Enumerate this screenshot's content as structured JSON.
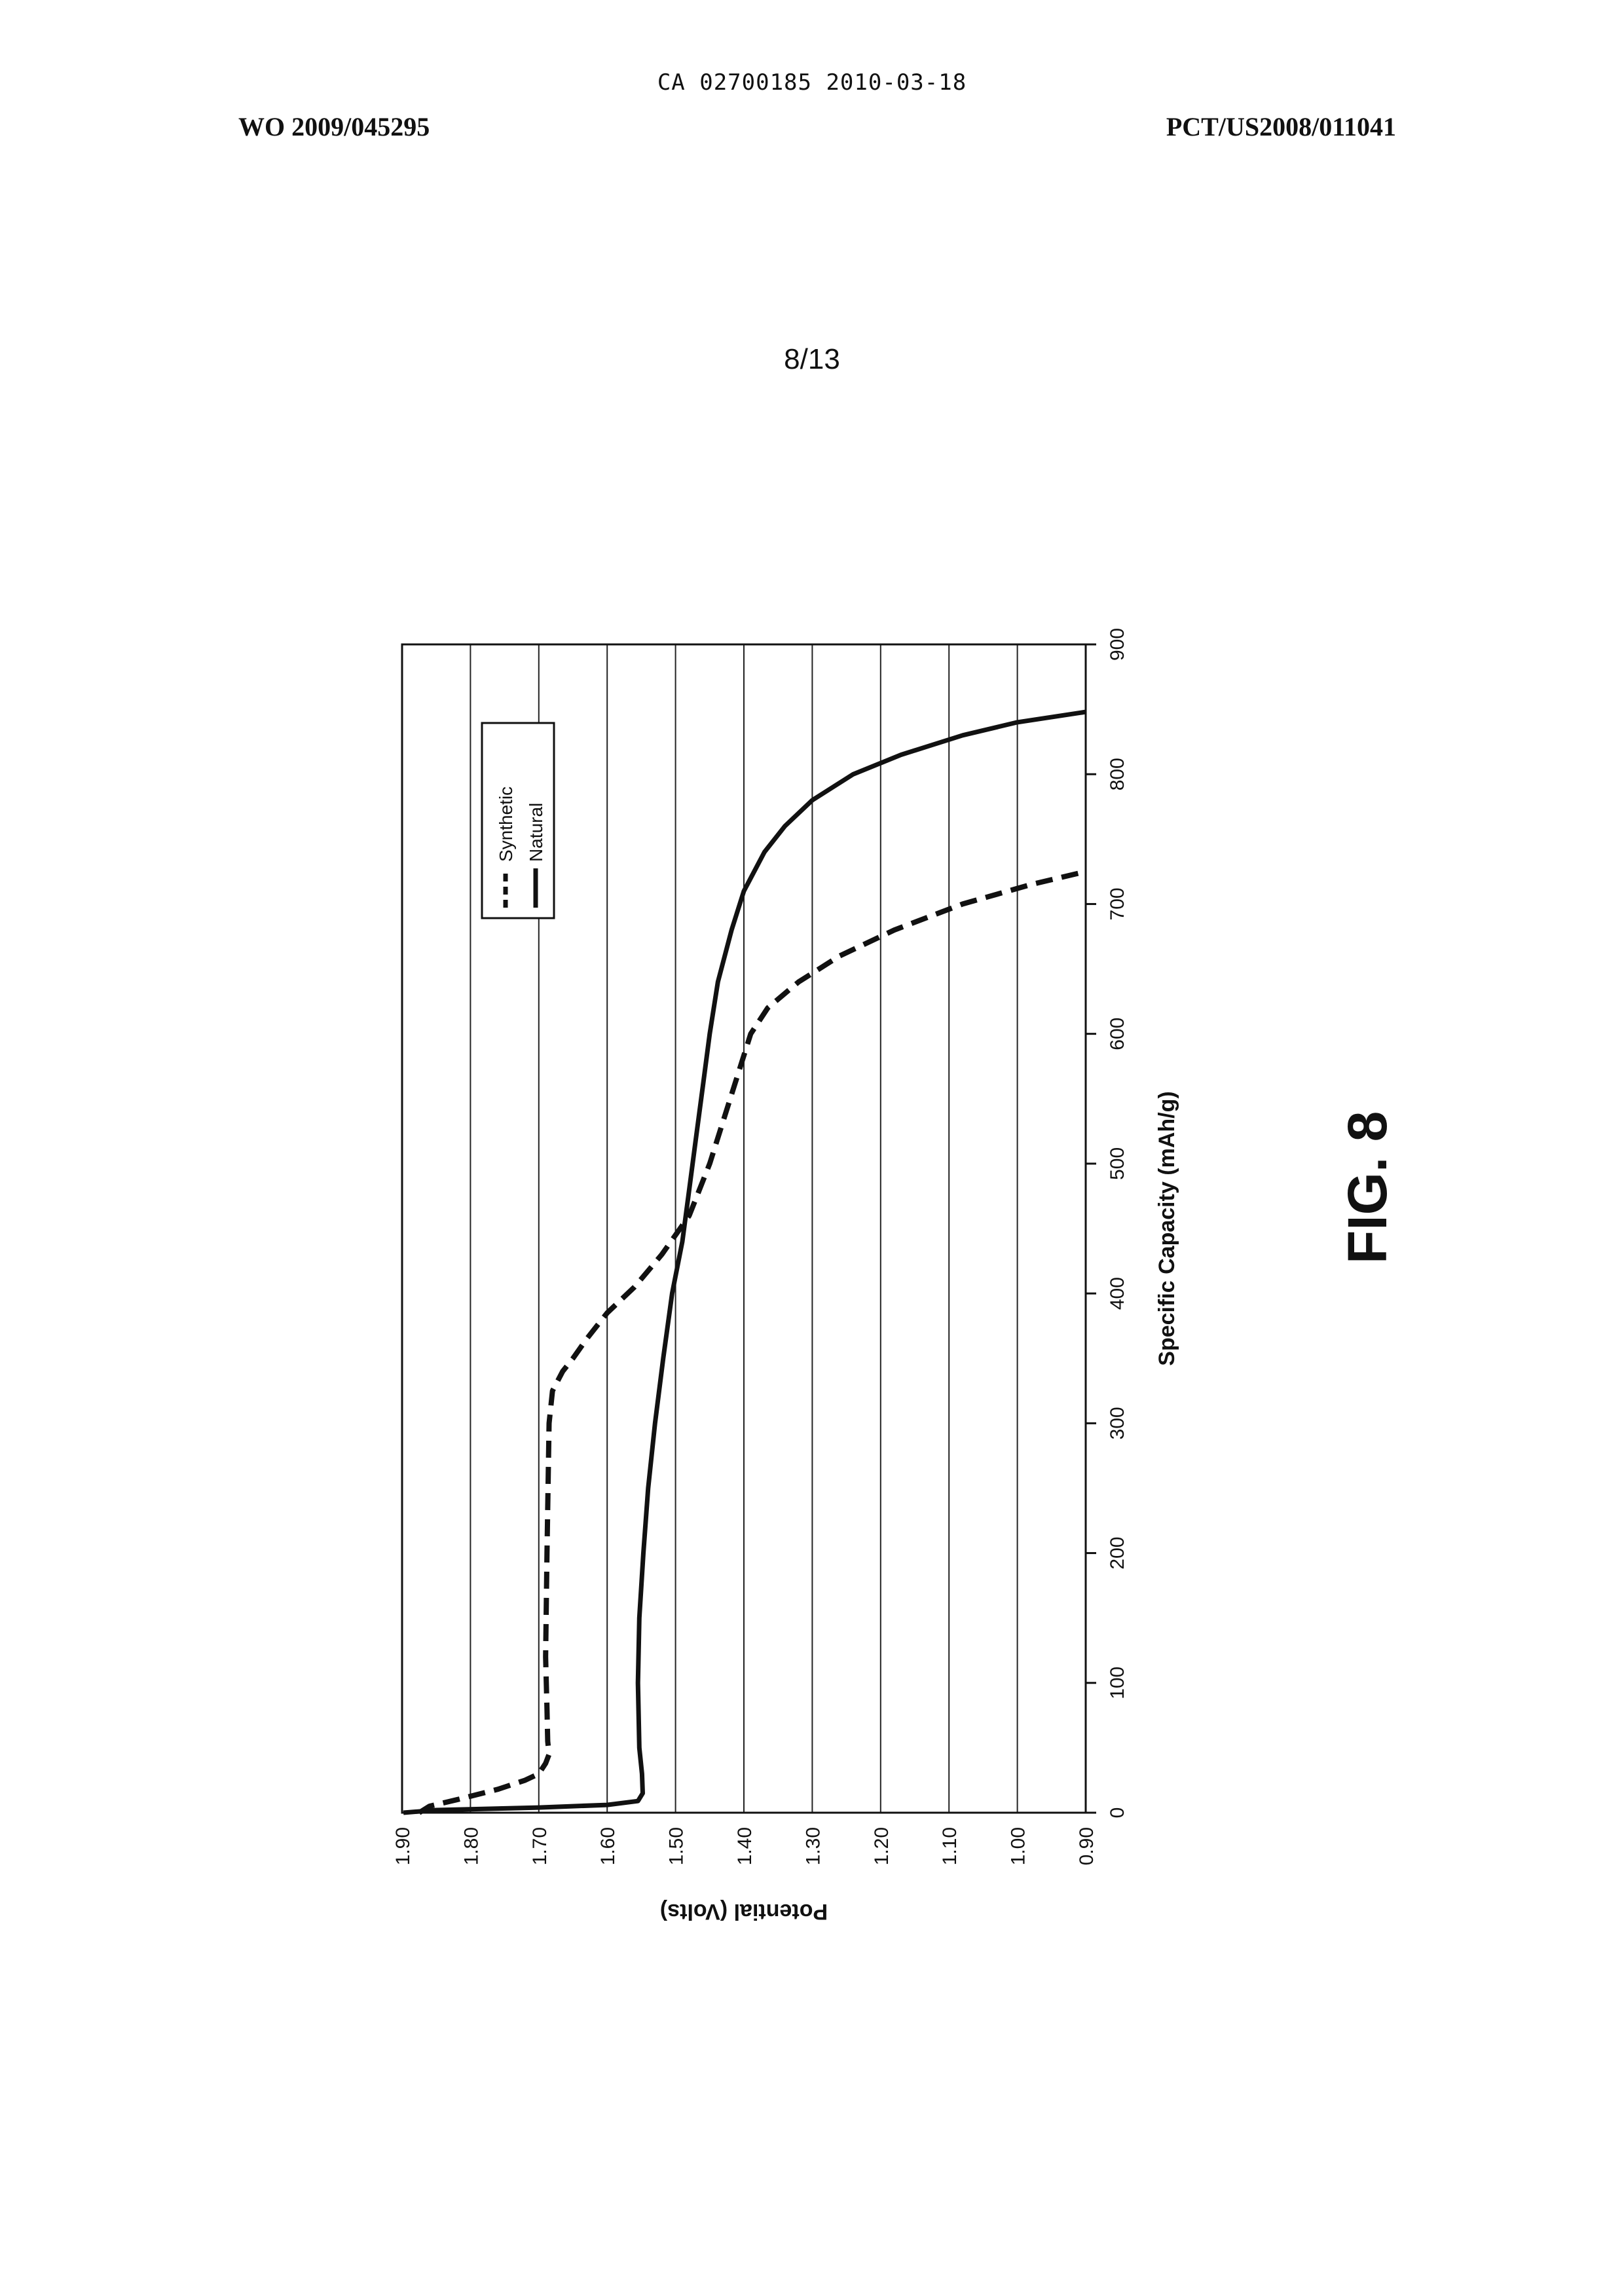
{
  "header": {
    "ca_line": "CA 02700185 2010-03-18",
    "pub_number": "WO 2009/045295",
    "app_number": "PCT/US2008/011041"
  },
  "sheet_number": "8/13",
  "figure_label": "FIG. 8",
  "chart_data": {
    "type": "line",
    "title": "",
    "xlabel": "Specific Capacity (mAh/g)",
    "ylabel": "Potential (Volts)",
    "xlim": [
      0,
      900
    ],
    "ylim": [
      0.9,
      1.9
    ],
    "x_ticks": [
      "0",
      "100",
      "200",
      "300",
      "400",
      "500",
      "600",
      "700",
      "800",
      "900"
    ],
    "y_ticks": [
      "1.90",
      "1.80",
      "1.70",
      "1.60",
      "1.50",
      "1.40",
      "1.30",
      "1.20",
      "1.10",
      "1.00",
      "0.90"
    ],
    "grid": "horizontal",
    "legend_position": "top-left",
    "orientation": "page rotated 90° (landscape figure)",
    "series": [
      {
        "name": "Synthetic",
        "style": "dashed",
        "color": "#111111",
        "points": [
          [
            0,
            1.875
          ],
          [
            5,
            1.86
          ],
          [
            10,
            1.82
          ],
          [
            18,
            1.76
          ],
          [
            25,
            1.72
          ],
          [
            30,
            1.7
          ],
          [
            38,
            1.69
          ],
          [
            45,
            1.685
          ],
          [
            55,
            1.687
          ],
          [
            80,
            1.688
          ],
          [
            120,
            1.69
          ],
          [
            200,
            1.688
          ],
          [
            300,
            1.685
          ],
          [
            325,
            1.68
          ],
          [
            340,
            1.665
          ],
          [
            350,
            1.65
          ],
          [
            365,
            1.63
          ],
          [
            385,
            1.6
          ],
          [
            405,
            1.56
          ],
          [
            430,
            1.52
          ],
          [
            460,
            1.48
          ],
          [
            500,
            1.45
          ],
          [
            550,
            1.42
          ],
          [
            600,
            1.39
          ],
          [
            620,
            1.365
          ],
          [
            640,
            1.32
          ],
          [
            660,
            1.26
          ],
          [
            680,
            1.18
          ],
          [
            700,
            1.08
          ],
          [
            715,
            0.98
          ],
          [
            725,
            0.9
          ]
        ]
      },
      {
        "name": "Natural",
        "style": "solid",
        "color": "#111111",
        "points": [
          [
            0,
            1.898
          ],
          [
            2,
            1.85
          ],
          [
            4,
            1.7
          ],
          [
            6,
            1.6
          ],
          [
            9,
            1.555
          ],
          [
            15,
            1.548
          ],
          [
            30,
            1.549
          ],
          [
            50,
            1.553
          ],
          [
            100,
            1.555
          ],
          [
            150,
            1.553
          ],
          [
            200,
            1.547
          ],
          [
            250,
            1.54
          ],
          [
            300,
            1.53
          ],
          [
            350,
            1.518
          ],
          [
            400,
            1.505
          ],
          [
            440,
            1.49
          ],
          [
            480,
            1.48
          ],
          [
            520,
            1.47
          ],
          [
            560,
            1.46
          ],
          [
            600,
            1.45
          ],
          [
            640,
            1.438
          ],
          [
            680,
            1.418
          ],
          [
            710,
            1.4
          ],
          [
            740,
            1.37
          ],
          [
            760,
            1.34
          ],
          [
            780,
            1.3
          ],
          [
            800,
            1.24
          ],
          [
            815,
            1.17
          ],
          [
            830,
            1.08
          ],
          [
            840,
            1.0
          ],
          [
            848,
            0.9
          ]
        ]
      }
    ]
  }
}
